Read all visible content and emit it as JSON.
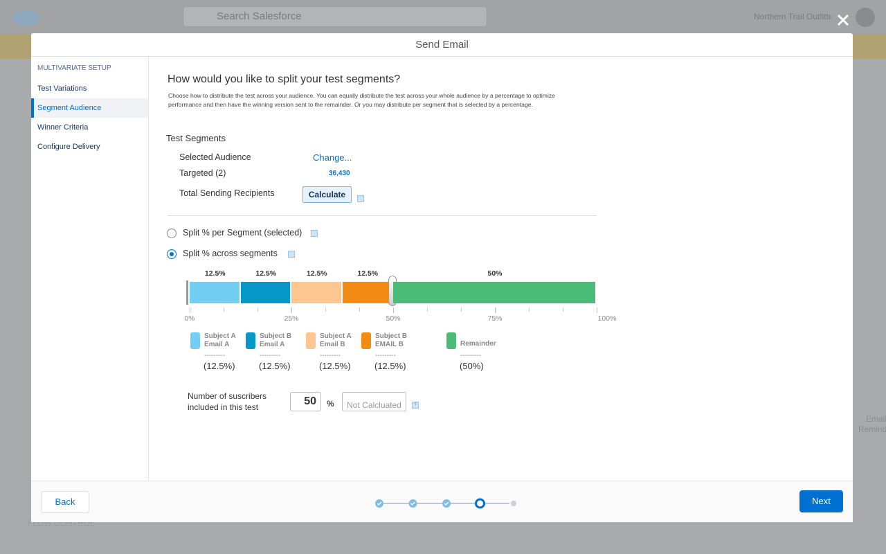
{
  "header": {
    "search_placeholder": "Search Salesforce",
    "org_name": "Northern Trail Outfitters"
  },
  "background": {
    "section": "FLOW CONTROL",
    "right_item": "Email Reminder"
  },
  "modal": {
    "title": "Send Email",
    "sidebar": {
      "heading": "MULTIVARIATE SETUP",
      "items": [
        "Test Variations",
        "Segment Audience",
        "Winner Criteria",
        "Configure Delivery"
      ],
      "active": 1
    },
    "content": {
      "heading": "How would you like to split your test segments?",
      "description": "Choose how to distribute the test across your audience. You can equally distribute the test across your whole audience by a percentage to optimize performance and then have the winning version sent to the remainder. Or you may distribute per segment that is selected by a percentage.",
      "section_title": "Test Segments",
      "fields": [
        {
          "label": "Selected Audience",
          "value": "Change..."
        },
        {
          "label": "Targeted (2)",
          "value": "36,430"
        },
        {
          "label": "Total Sending Recipients",
          "button": "Calculate"
        }
      ],
      "split_options": [
        {
          "label": "Split % per Segment (selected)",
          "selected": false
        },
        {
          "label": "Split % across segments",
          "selected": true
        }
      ],
      "split_chart": {
        "type": "stacked_bar",
        "xlim": [
          0,
          100
        ],
        "xticks": [
          {
            "value": 0,
            "label": "0%"
          },
          {
            "value": 25,
            "label": "25%"
          },
          {
            "value": 50,
            "label": "50%"
          },
          {
            "value": 75,
            "label": "75%"
          },
          {
            "value": 100,
            "label": "100%"
          }
        ],
        "minor_ticks": [
          8.33,
          16.67,
          33.33,
          41.67,
          58.33,
          66.67,
          83.33,
          91.67
        ],
        "segments": [
          {
            "name": "Subject A Email A",
            "color": "#73cef3",
            "value": 12.5,
            "value_label": "12.5%",
            "legend_value": "(12.5%)"
          },
          {
            "name": "Subject B Email A",
            "color": "#0798c9",
            "value": 12.5,
            "value_label": "12.5%",
            "legend_value": "(12.5%)"
          },
          {
            "name": "Subject A Email B",
            "color": "#fdc590",
            "value": 12.5,
            "value_label": "12.5%",
            "legend_value": "(12.5%)"
          },
          {
            "name": "Subject B EMAIL B",
            "color": "#f28b14",
            "value": 12.5,
            "value_label": "12.5%",
            "legend_value": "(12.5%)"
          },
          {
            "name": "Remainder",
            "color": "#4bbb78",
            "value": 50,
            "value_label": "50%",
            "legend_value": "(50%)"
          }
        ],
        "legend_divider": "---------"
      },
      "subscribers": {
        "label": "Number of suscribers included in this test",
        "value": 50,
        "unit": "%",
        "result": "Not Calcluated"
      }
    },
    "footer": {
      "back": "Back",
      "next": "Next",
      "steps": 5,
      "current_step": 4
    }
  }
}
